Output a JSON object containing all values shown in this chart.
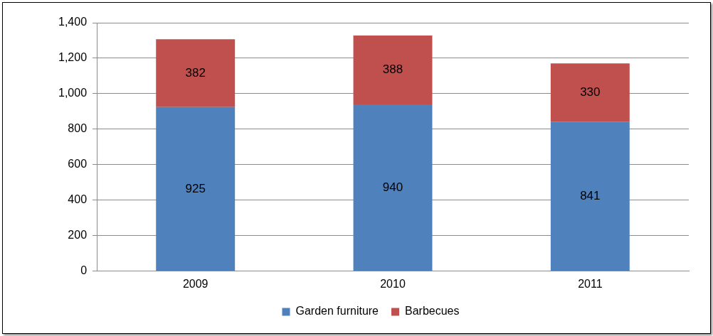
{
  "chart_data": {
    "type": "bar",
    "stacked": true,
    "categories": [
      "2009",
      "2010",
      "2011"
    ],
    "series": [
      {
        "name": "Garden furniture",
        "color": "#4f81bd",
        "values": [
          925,
          940,
          841
        ]
      },
      {
        "name": "Barbecues",
        "color": "#c0504d",
        "values": [
          382,
          388,
          330
        ]
      }
    ],
    "ylim": [
      0,
      1400
    ],
    "yticks": [
      0,
      200,
      400,
      600,
      800,
      {
        "value": 1000,
        "label": "1,000"
      },
      {
        "value": 1200,
        "label": "1,200"
      },
      {
        "value": 1400,
        "label": "1,400"
      }
    ],
    "grid": "y",
    "legend": "bottom",
    "data_labels": true
  }
}
